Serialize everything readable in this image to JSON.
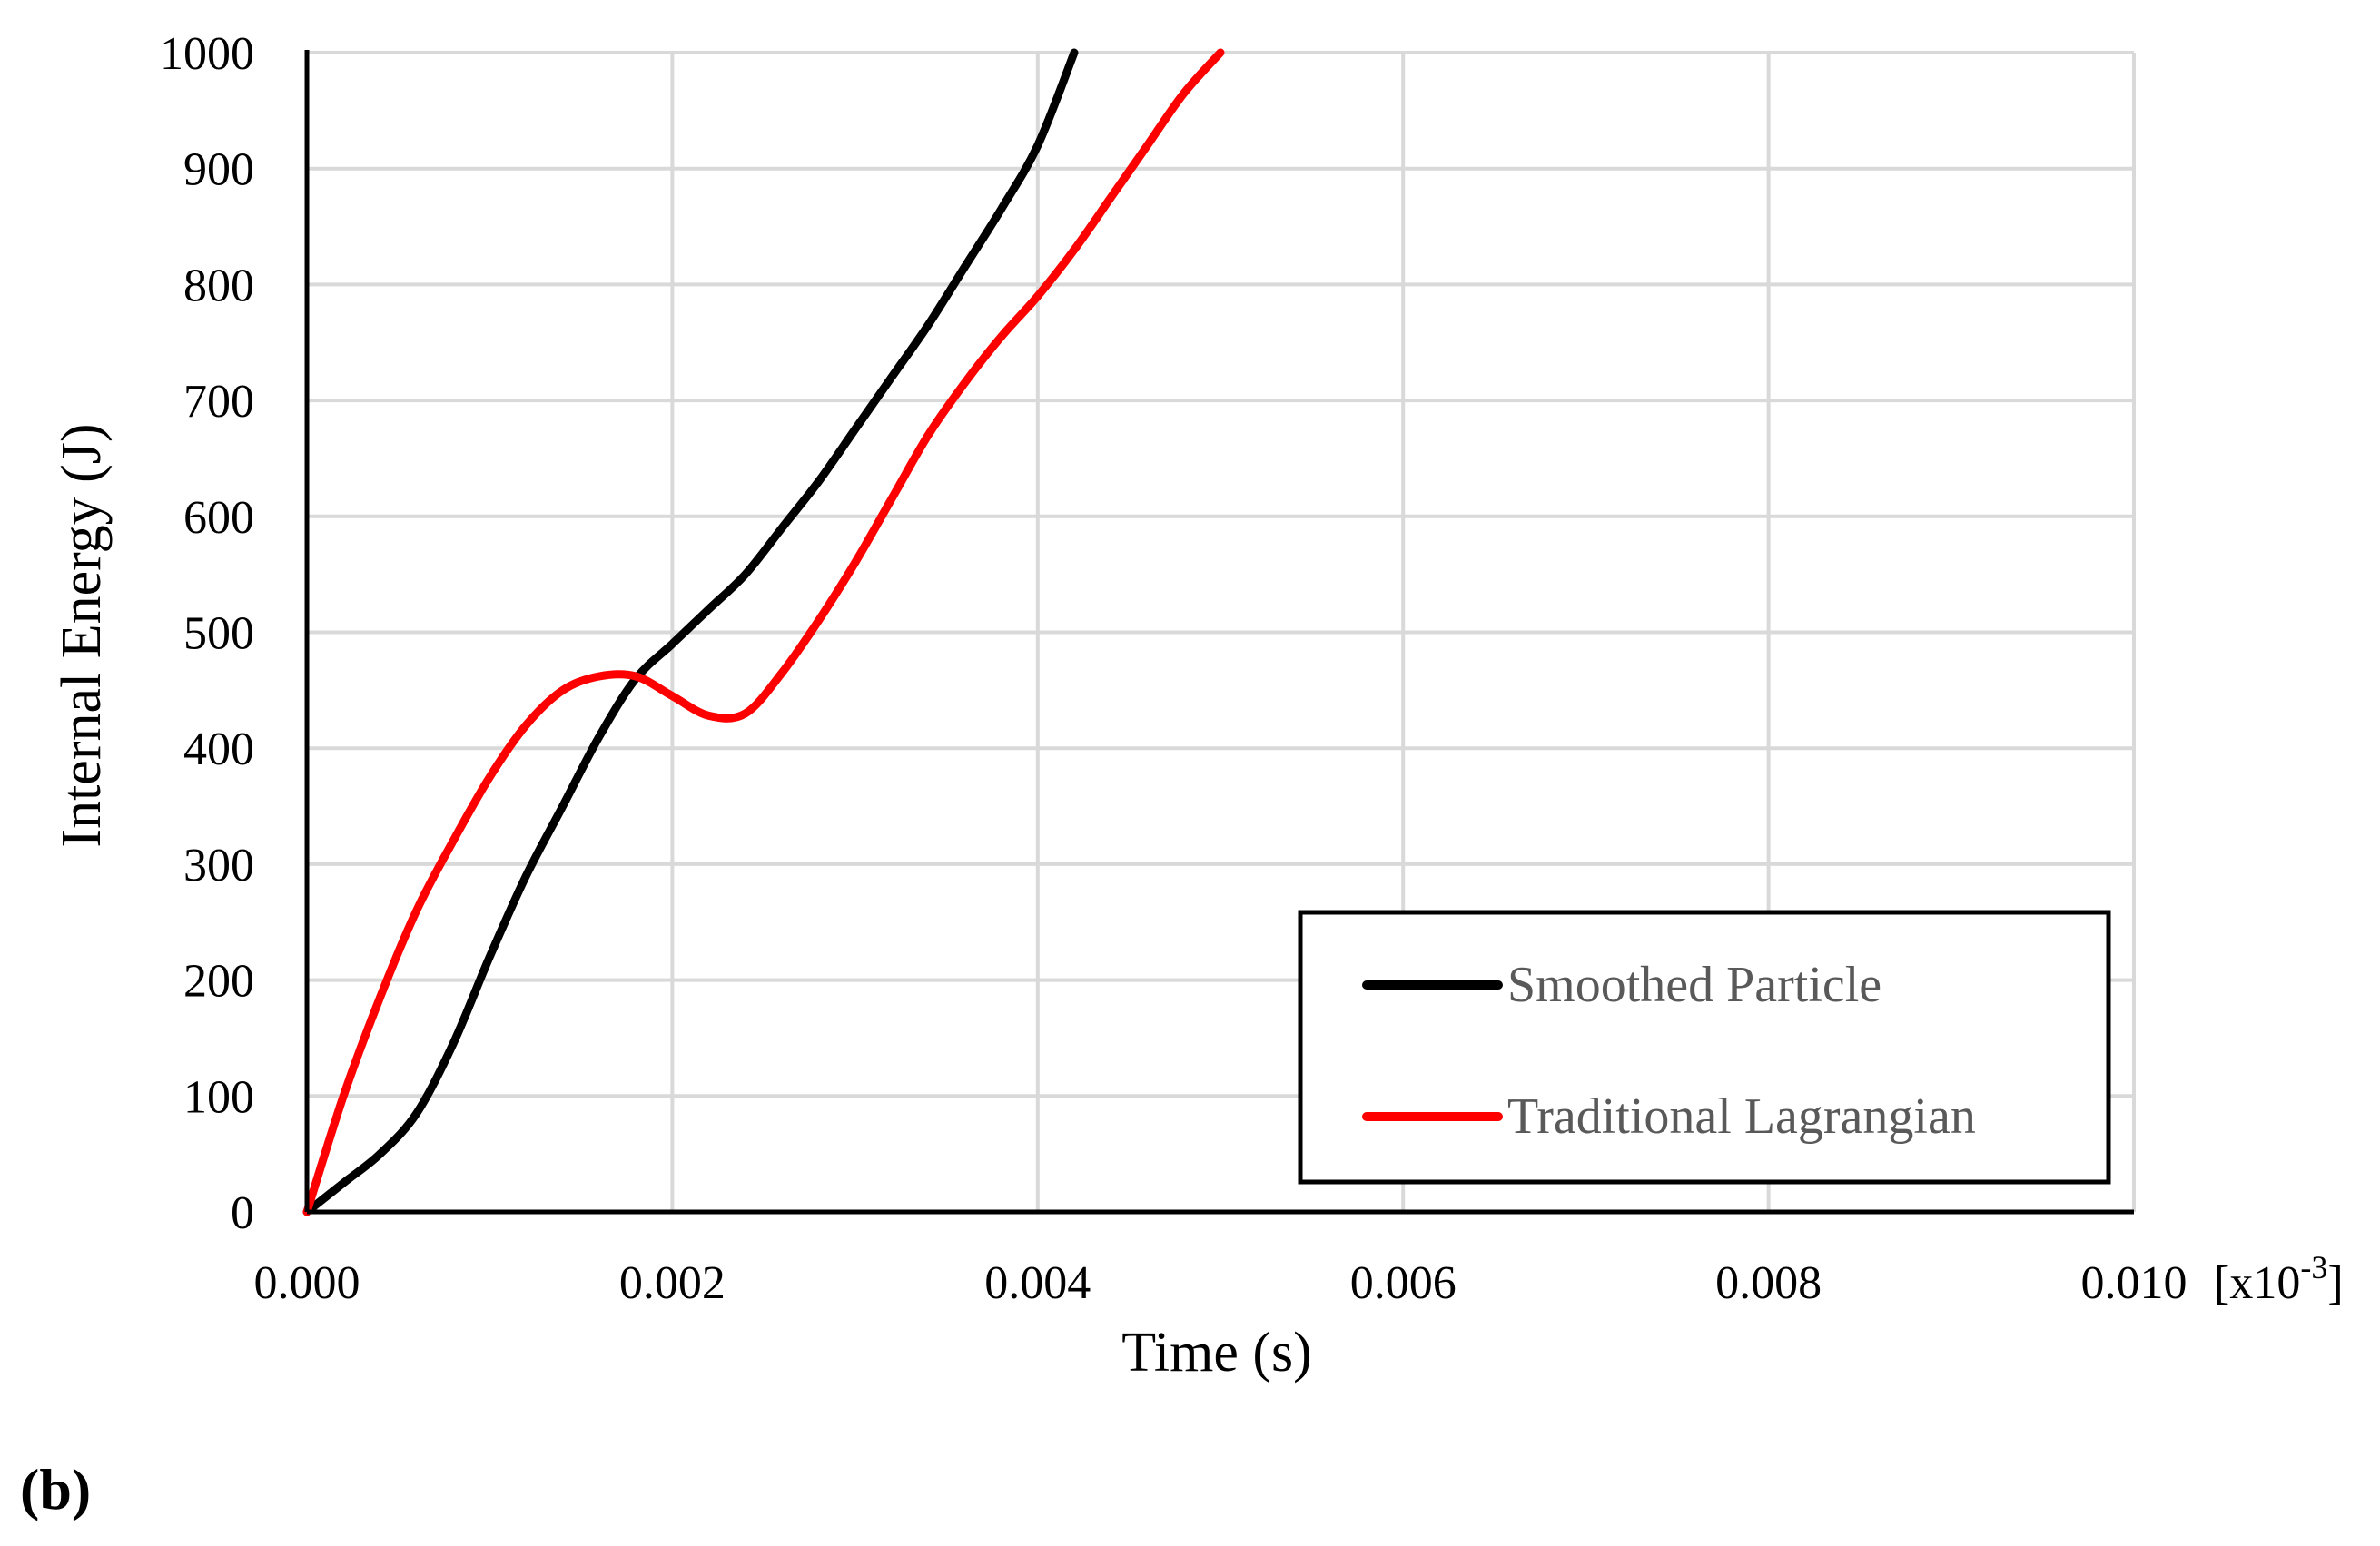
{
  "chart_data": {
    "type": "line",
    "title": "",
    "xlabel": "Time (s)",
    "ylabel": "Internal Energy (J)",
    "x_scale_note": "[x10-3]",
    "panel_label": "(b)",
    "xlim": [
      0,
      0.01
    ],
    "ylim": [
      0,
      1000
    ],
    "xticks": [
      "0.000",
      "0.002",
      "0.004",
      "0.006",
      "0.008",
      "0.010"
    ],
    "yticks": [
      "0",
      "100",
      "200",
      "300",
      "400",
      "500",
      "600",
      "700",
      "800",
      "900",
      "1000"
    ],
    "grid": true,
    "legend_position": "bottom-right",
    "series": [
      {
        "name": "Smoothed Particle",
        "color": "#000000",
        "x": [
          0,
          0.0002,
          0.0004,
          0.0006,
          0.0008,
          0.001,
          0.0012,
          0.0014,
          0.0016,
          0.0018,
          0.002,
          0.0022,
          0.0024,
          0.0026,
          0.0028,
          0.003,
          0.0032,
          0.0034,
          0.0036,
          0.0038,
          0.004,
          0.0042
        ],
        "y": [
          0,
          25,
          50,
          85,
          145,
          220,
          290,
          350,
          410,
          460,
          490,
          520,
          550,
          590,
          630,
          675,
          720,
          765,
          815,
          865,
          920,
          1000
        ]
      },
      {
        "name": "Traditional Lagrangian",
        "color": "#ff0000",
        "x": [
          0,
          0.0002,
          0.0004,
          0.0006,
          0.0008,
          0.001,
          0.0012,
          0.0014,
          0.0016,
          0.0018,
          0.002,
          0.0022,
          0.0024,
          0.0026,
          0.0028,
          0.003,
          0.0032,
          0.0034,
          0.0036,
          0.0038,
          0.004,
          0.0042,
          0.0044,
          0.0046,
          0.0048,
          0.005
        ],
        "y": [
          0,
          100,
          185,
          260,
          320,
          375,
          420,
          450,
          462,
          462,
          445,
          428,
          430,
          465,
          510,
          560,
          615,
          670,
          715,
          755,
          790,
          830,
          875,
          920,
          965,
          1000
        ]
      }
    ]
  }
}
